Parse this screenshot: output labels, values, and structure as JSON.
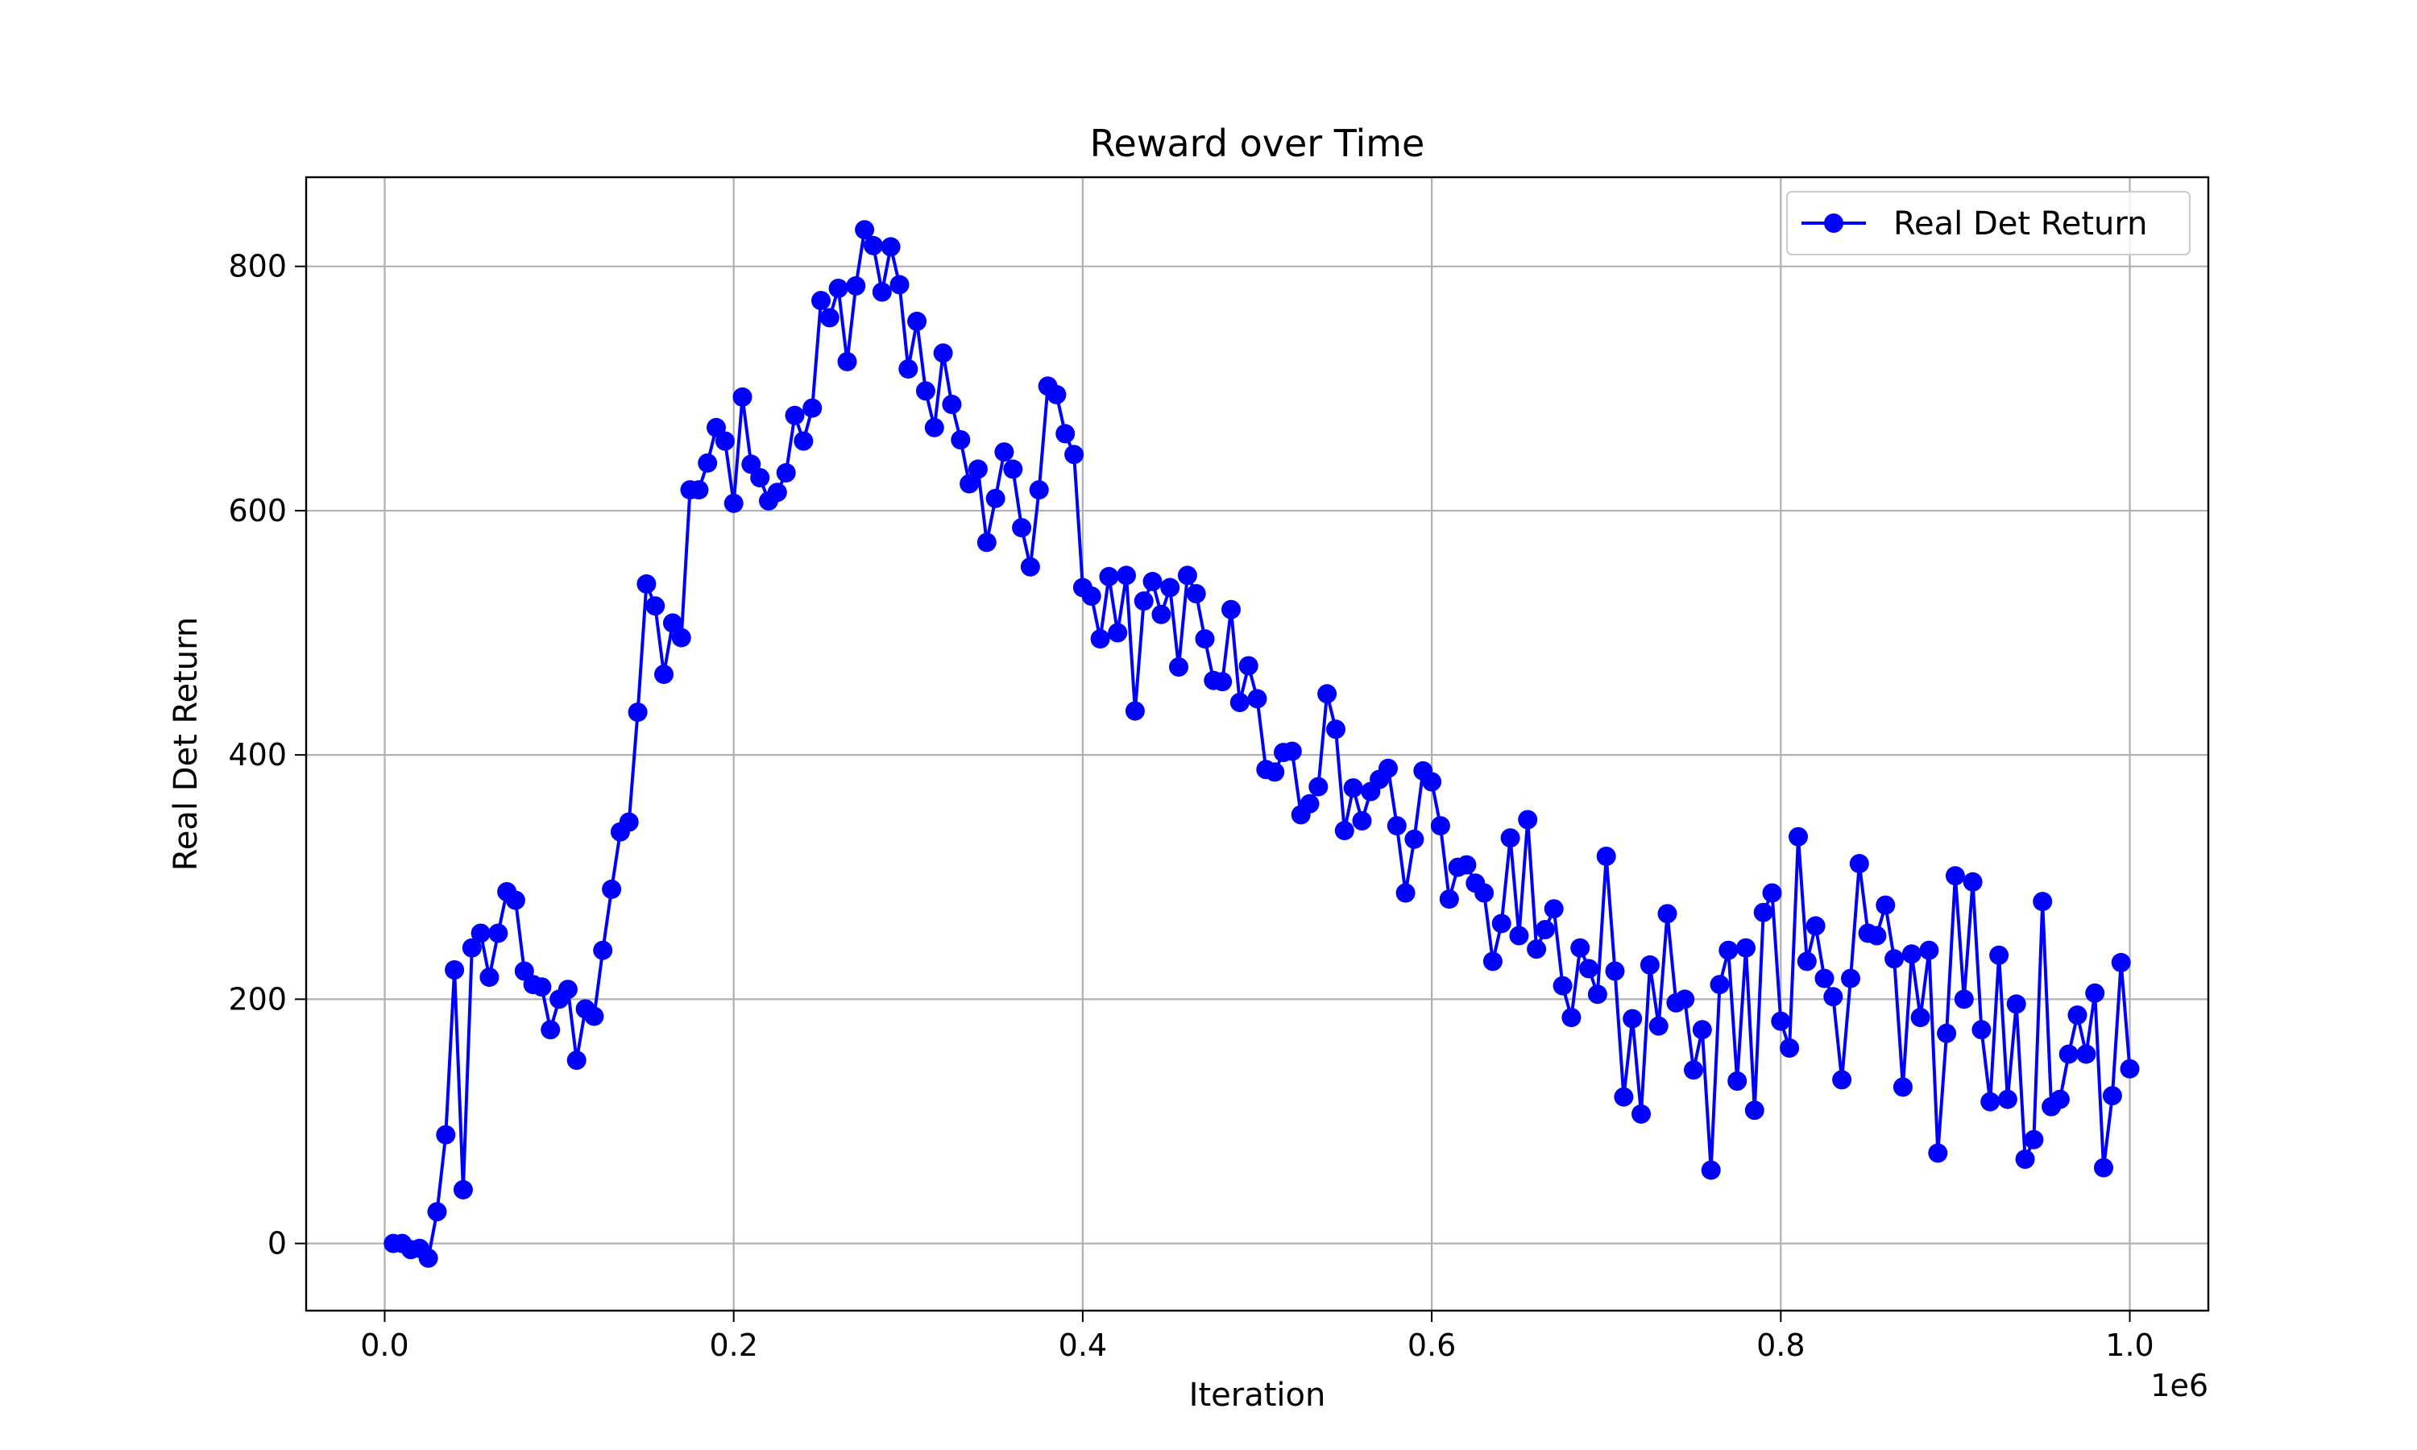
{
  "chart_data": {
    "type": "line",
    "title": "Reward over Time",
    "xlabel": "Iteration",
    "ylabel": "Real Det Return",
    "x_offset_label": "1e6",
    "xlim": [
      -0.045,
      1.045
    ],
    "ylim": [
      -55,
      873
    ],
    "xticks": [
      0.0,
      0.2,
      0.4,
      0.6,
      0.8,
      1.0
    ],
    "xtick_labels": [
      "0.0",
      "0.2",
      "0.4",
      "0.6",
      "0.8",
      "1.0"
    ],
    "yticks": [
      0,
      200,
      400,
      600,
      800
    ],
    "ytick_labels": [
      "0",
      "200",
      "400",
      "600",
      "800"
    ],
    "grid": true,
    "legend_position": "top-right",
    "series": [
      {
        "name": "Real Det Return",
        "color": "#0000ff",
        "marker": "circle",
        "x": [
          0.005,
          0.01,
          0.015,
          0.02,
          0.025,
          0.03,
          0.035,
          0.04,
          0.045,
          0.05,
          0.055,
          0.06,
          0.065,
          0.07,
          0.075,
          0.08,
          0.085,
          0.09,
          0.095,
          0.1,
          0.105,
          0.11,
          0.115,
          0.12,
          0.125,
          0.13,
          0.135,
          0.14,
          0.145,
          0.15,
          0.155,
          0.16,
          0.165,
          0.17,
          0.175,
          0.18,
          0.185,
          0.19,
          0.195,
          0.2,
          0.205,
          0.21,
          0.215,
          0.22,
          0.225,
          0.23,
          0.235,
          0.24,
          0.245,
          0.25,
          0.255,
          0.26,
          0.265,
          0.27,
          0.275,
          0.28,
          0.285,
          0.29,
          0.295,
          0.3,
          0.305,
          0.31,
          0.315,
          0.32,
          0.325,
          0.33,
          0.335,
          0.34,
          0.345,
          0.35,
          0.355,
          0.36,
          0.365,
          0.37,
          0.375,
          0.38,
          0.385,
          0.39,
          0.395,
          0.4,
          0.405,
          0.41,
          0.415,
          0.42,
          0.425,
          0.43,
          0.435,
          0.44,
          0.445,
          0.45,
          0.455,
          0.46,
          0.465,
          0.47,
          0.475,
          0.48,
          0.485,
          0.49,
          0.495,
          0.5,
          0.505,
          0.51,
          0.515,
          0.52,
          0.525,
          0.53,
          0.535,
          0.54,
          0.545,
          0.55,
          0.555,
          0.56,
          0.565,
          0.57,
          0.575,
          0.58,
          0.585,
          0.59,
          0.595,
          0.6,
          0.605,
          0.61,
          0.615,
          0.62,
          0.625,
          0.63,
          0.635,
          0.64,
          0.645,
          0.65,
          0.655,
          0.66,
          0.665,
          0.67,
          0.675,
          0.68,
          0.685,
          0.69,
          0.695,
          0.7,
          0.705,
          0.71,
          0.715,
          0.72,
          0.725,
          0.73,
          0.735,
          0.74,
          0.745,
          0.75,
          0.755,
          0.76,
          0.765,
          0.77,
          0.775,
          0.78,
          0.785,
          0.79,
          0.795,
          0.8,
          0.805,
          0.81,
          0.815,
          0.82,
          0.825,
          0.83,
          0.835,
          0.84,
          0.845,
          0.85,
          0.855,
          0.86,
          0.865,
          0.87,
          0.875,
          0.88,
          0.885,
          0.89,
          0.895,
          0.9,
          0.905,
          0.91,
          0.915,
          0.92,
          0.925,
          0.93,
          0.935,
          0.94,
          0.945,
          0.95,
          0.955,
          0.96,
          0.965,
          0.97,
          0.975,
          0.98,
          0.985,
          0.99,
          0.995,
          1.0
        ],
        "y": [
          0,
          0,
          -5,
          -4,
          -12,
          26,
          89,
          224,
          44,
          242,
          254,
          218,
          254,
          288,
          281,
          223,
          212,
          210,
          175,
          200,
          208,
          150,
          192,
          186,
          240,
          290,
          337,
          345,
          435,
          540,
          522,
          466,
          508,
          496,
          617,
          617,
          639,
          668,
          657,
          606,
          693,
          638,
          627,
          608,
          615,
          631,
          678,
          657,
          684,
          772,
          758,
          782,
          722,
          784,
          830,
          817,
          779,
          816,
          785,
          716,
          755,
          698,
          668,
          729,
          687,
          658,
          622,
          634,
          574,
          610,
          648,
          634,
          586,
          554,
          617,
          702,
          695,
          663,
          646,
          537,
          530,
          495,
          546,
          500,
          547,
          436,
          526,
          542,
          515,
          537,
          472,
          547,
          532,
          495,
          461,
          460,
          519,
          443,
          473,
          446,
          388,
          386,
          402,
          403,
          351,
          360,
          374,
          450,
          421,
          338,
          373,
          346,
          370,
          380,
          389,
          342,
          287,
          331,
          387,
          378,
          342,
          282,
          308,
          310,
          295,
          287,
          231,
          262,
          332,
          252,
          347,
          241,
          257,
          274,
          211,
          185,
          242,
          225,
          204,
          317,
          223,
          120,
          184,
          106,
          228,
          178,
          270,
          197,
          200,
          142,
          175,
          60,
          212,
          240,
          133,
          242,
          109,
          271,
          287,
          182,
          160,
          333,
          231,
          260,
          217,
          202,
          134,
          217,
          311,
          254,
          252,
          277,
          233,
          128,
          237,
          185,
          240,
          74,
          172,
          301,
          200,
          296,
          175,
          116,
          236,
          118,
          196,
          69,
          85,
          280,
          112,
          118,
          155,
          187,
          155,
          205,
          62,
          121,
          230,
          143
        ]
      }
    ]
  }
}
